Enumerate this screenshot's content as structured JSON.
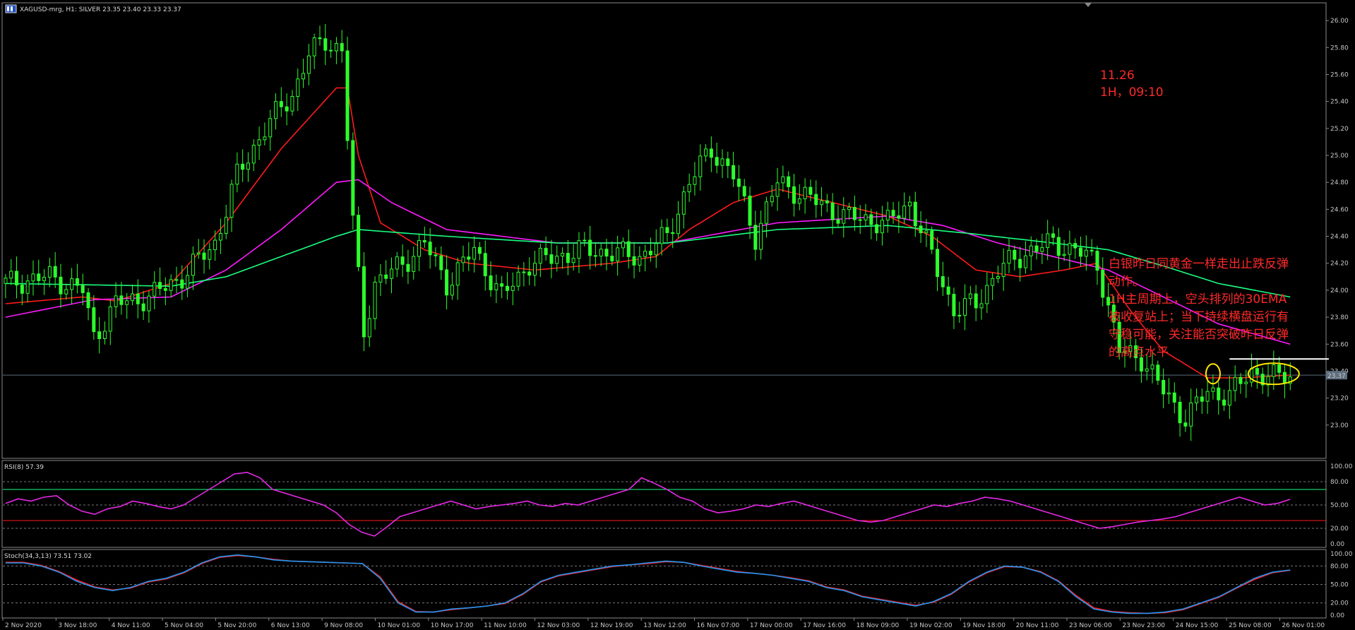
{
  "header": {
    "symbol_line": "XAGUSD-mrg, H1: SILVER 23.35 23.40 23.33 23.37",
    "flag_icon": "window-flag-icon"
  },
  "annotation_date": {
    "line1": "11.26",
    "line2": "1H，09:10"
  },
  "annotation_text": {
    "lines": [
      "白银昨日同黄金一样走出止跌反弹",
      "动作。",
      "1H主周期上，空头排列的30EMA",
      "被收复站上；当下持续横盘运行有",
      "守稳可能，关注能否突破昨日反弹",
      "的高点水平"
    ]
  },
  "price_label": "23.37",
  "rsi_label": "RSI(8) 57.39",
  "stoch_label": "Stoch(34,3,13) 73.51 73.02",
  "colors": {
    "candle": "#2cff2c",
    "ema_red": "#ff1a1a",
    "ema_magenta": "#ff1aff",
    "ema_green": "#1aff80",
    "rsi": "#e629e6",
    "stoch_main": "#2196f3",
    "stoch_signal": "#ff1a1a",
    "annotation": "#ff2a2a",
    "ellipse": "#ffe600"
  },
  "chart_data": [
    {
      "type": "candlestick",
      "title": "XAGUSD-mrg, H1: SILVER",
      "ylim": [
        22.8,
        26.1
      ],
      "y_ticks": [
        "26.00",
        "25.80",
        "25.60",
        "25.40",
        "25.20",
        "25.00",
        "24.80",
        "24.60",
        "24.40",
        "24.20",
        "24.00",
        "23.80",
        "23.60",
        "23.40",
        "23.20",
        "23.00"
      ],
      "x_ticks": [
        "2 Nov 2020",
        "3 Nov 18:00",
        "4 Nov 11:00",
        "5 Nov 04:00",
        "5 Nov 20:00",
        "6 Nov 13:00",
        "9 Nov 08:00",
        "10 Nov 01:00",
        "10 Nov 17:00",
        "11 Nov 10:00",
        "12 Nov 03:00",
        "12 Nov 19:00",
        "13 Nov 12:00",
        "16 Nov 07:00",
        "17 Nov 00:00",
        "17 Nov 16:00",
        "18 Nov 09:00",
        "19 Nov 02:00",
        "19 Nov 18:00",
        "20 Nov 11:00",
        "23 Nov 06:00",
        "23 Nov 23:00",
        "24 Nov 15:00",
        "25 Nov 08:00",
        "26 Nov 01:00"
      ],
      "last_price": 23.37,
      "resistance_level": 23.49,
      "price_path": [
        [
          0,
          24.05
        ],
        [
          8,
          24.1
        ],
        [
          14,
          24.0
        ],
        [
          16,
          23.65
        ],
        [
          20,
          23.9
        ],
        [
          26,
          23.95
        ],
        [
          32,
          24.1
        ],
        [
          38,
          24.35
        ],
        [
          42,
          24.85
        ],
        [
          47,
          25.2
        ],
        [
          52,
          25.45
        ],
        [
          55,
          25.75
        ],
        [
          58,
          25.85
        ],
        [
          61,
          25.78
        ],
        [
          63,
          24.5
        ],
        [
          65,
          23.7
        ],
        [
          67,
          24.05
        ],
        [
          72,
          24.2
        ],
        [
          76,
          24.35
        ],
        [
          80,
          24.05
        ],
        [
          85,
          24.3
        ],
        [
          90,
          23.95
        ],
        [
          95,
          24.2
        ],
        [
          105,
          24.3
        ],
        [
          115,
          24.25
        ],
        [
          120,
          24.4
        ],
        [
          124,
          24.8
        ],
        [
          128,
          25.05
        ],
        [
          132,
          24.85
        ],
        [
          136,
          24.4
        ],
        [
          140,
          24.8
        ],
        [
          144,
          24.72
        ],
        [
          152,
          24.55
        ],
        [
          160,
          24.5
        ],
        [
          164,
          24.65
        ],
        [
          168,
          24.25
        ],
        [
          172,
          23.85
        ],
        [
          176,
          23.9
        ],
        [
          180,
          24.15
        ],
        [
          186,
          24.3
        ],
        [
          190,
          24.35
        ],
        [
          194,
          24.3
        ],
        [
          198,
          24.2
        ],
        [
          202,
          23.55
        ],
        [
          206,
          23.5
        ],
        [
          210,
          23.25
        ],
        [
          214,
          23.05
        ],
        [
          218,
          23.25
        ],
        [
          222,
          23.22
        ],
        [
          226,
          23.4
        ],
        [
          230,
          23.35
        ],
        [
          233,
          23.37
        ]
      ],
      "ema_red": [
        [
          0,
          23.9
        ],
        [
          14,
          23.95
        ],
        [
          20,
          23.92
        ],
        [
          30,
          24.05
        ],
        [
          40,
          24.5
        ],
        [
          50,
          25.05
        ],
        [
          60,
          25.5
        ],
        [
          62,
          25.5
        ],
        [
          64,
          25.0
        ],
        [
          68,
          24.5
        ],
        [
          76,
          24.3
        ],
        [
          84,
          24.2
        ],
        [
          96,
          24.15
        ],
        [
          110,
          24.2
        ],
        [
          118,
          24.25
        ],
        [
          124,
          24.45
        ],
        [
          132,
          24.65
        ],
        [
          140,
          24.75
        ],
        [
          150,
          24.65
        ],
        [
          160,
          24.55
        ],
        [
          168,
          24.4
        ],
        [
          176,
          24.15
        ],
        [
          184,
          24.1
        ],
        [
          192,
          24.15
        ],
        [
          198,
          24.2
        ],
        [
          204,
          23.85
        ],
        [
          210,
          23.55
        ],
        [
          218,
          23.35
        ],
        [
          224,
          23.35
        ],
        [
          233,
          23.37
        ]
      ],
      "ema_magenta": [
        [
          0,
          23.8
        ],
        [
          16,
          23.93
        ],
        [
          30,
          23.95
        ],
        [
          40,
          24.15
        ],
        [
          50,
          24.45
        ],
        [
          60,
          24.8
        ],
        [
          64,
          24.82
        ],
        [
          70,
          24.65
        ],
        [
          80,
          24.45
        ],
        [
          100,
          24.35
        ],
        [
          120,
          24.35
        ],
        [
          140,
          24.5
        ],
        [
          160,
          24.55
        ],
        [
          170,
          24.48
        ],
        [
          180,
          24.35
        ],
        [
          190,
          24.25
        ],
        [
          200,
          24.15
        ],
        [
          210,
          23.95
        ],
        [
          220,
          23.75
        ],
        [
          233,
          23.6
        ]
      ],
      "ema_green": [
        [
          0,
          24.05
        ],
        [
          30,
          24.03
        ],
        [
          40,
          24.1
        ],
        [
          50,
          24.25
        ],
        [
          60,
          24.4
        ],
        [
          64,
          24.45
        ],
        [
          80,
          24.4
        ],
        [
          100,
          24.35
        ],
        [
          120,
          24.35
        ],
        [
          140,
          24.45
        ],
        [
          160,
          24.48
        ],
        [
          175,
          24.42
        ],
        [
          190,
          24.35
        ],
        [
          200,
          24.3
        ],
        [
          210,
          24.18
        ],
        [
          220,
          24.05
        ],
        [
          233,
          23.95
        ]
      ]
    },
    {
      "type": "line",
      "title": "RSI(8) 57.39",
      "ylim": [
        0,
        100
      ],
      "y_ticks": [
        "100.00",
        "80.00",
        "50.00",
        "20.00",
        "0.00"
      ],
      "levels": [
        70,
        30
      ],
      "series": [
        {
          "name": "RSI(8)",
          "values": [
            52,
            58,
            55,
            60,
            62,
            50,
            42,
            38,
            45,
            48,
            55,
            52,
            48,
            45,
            50,
            60,
            70,
            80,
            90,
            92,
            85,
            70,
            65,
            60,
            55,
            50,
            40,
            25,
            15,
            10,
            22,
            35,
            40,
            45,
            50,
            55,
            50,
            45,
            48,
            50,
            52,
            55,
            50,
            48,
            52,
            50,
            55,
            60,
            65,
            70,
            85,
            78,
            70,
            60,
            55,
            45,
            40,
            42,
            45,
            50,
            48,
            52,
            55,
            50,
            45,
            40,
            35,
            30,
            28,
            30,
            35,
            40,
            45,
            50,
            48,
            52,
            55,
            60,
            58,
            55,
            50,
            45,
            40,
            35,
            30,
            25,
            20,
            22,
            25,
            28,
            30,
            32,
            35,
            40,
            45,
            50,
            55,
            60,
            55,
            50,
            52,
            57.39
          ]
        }
      ]
    },
    {
      "type": "line",
      "title": "Stoch(34,3,13) 73.51 73.02",
      "ylim": [
        0,
        100
      ],
      "y_ticks": [
        "100.00",
        "80.00",
        "50.00",
        "20.00",
        "0.00"
      ],
      "series": [
        {
          "name": "main",
          "values": [
            85,
            85,
            80,
            70,
            55,
            45,
            40,
            45,
            55,
            60,
            70,
            85,
            95,
            98,
            95,
            90,
            88,
            87,
            86,
            85,
            84,
            60,
            20,
            5,
            5,
            10,
            12,
            15,
            20,
            35,
            55,
            65,
            70,
            75,
            80,
            82,
            85,
            88,
            86,
            80,
            75,
            70,
            68,
            65,
            60,
            55,
            45,
            40,
            30,
            25,
            20,
            15,
            22,
            35,
            55,
            70,
            80,
            78,
            70,
            55,
            30,
            10,
            5,
            3,
            3,
            5,
            10,
            20,
            30,
            45,
            60,
            70,
            73.51
          ]
        },
        {
          "name": "signal",
          "values": [
            86,
            86,
            81,
            71,
            57,
            46,
            41,
            44,
            54,
            59,
            69,
            84,
            94,
            97,
            95,
            91,
            88,
            87,
            86,
            85,
            84,
            62,
            22,
            6,
            5,
            9,
            12,
            15,
            19,
            34,
            54,
            64,
            69,
            74,
            79,
            82,
            84,
            87,
            86,
            81,
            76,
            71,
            68,
            65,
            61,
            56,
            46,
            41,
            31,
            26,
            21,
            16,
            21,
            34,
            54,
            69,
            79,
            78,
            71,
            56,
            32,
            12,
            6,
            4,
            3,
            4,
            9,
            19,
            29,
            44,
            58,
            69,
            73.02
          ]
        }
      ]
    }
  ]
}
